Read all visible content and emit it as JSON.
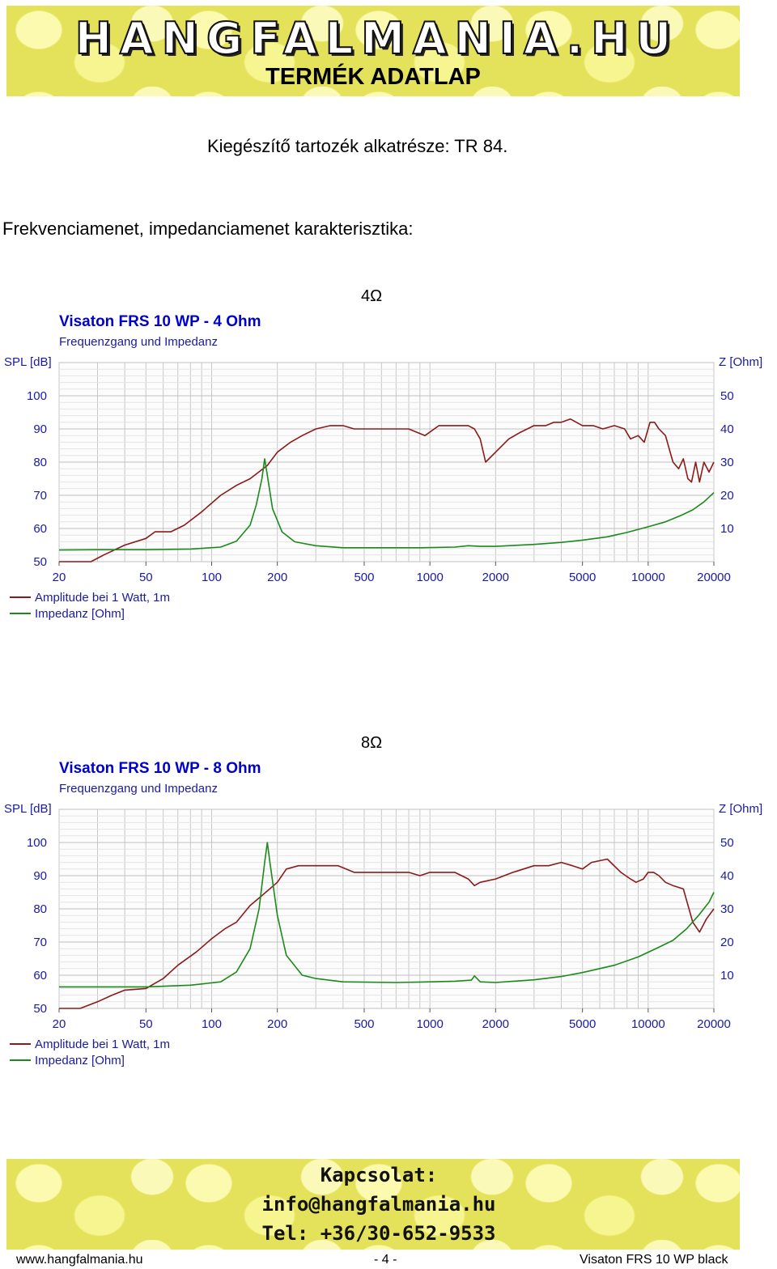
{
  "header": {
    "logo_text": "HANGFALMANIA.HU",
    "doc_type": "TERMÉK ADATLAP"
  },
  "accessory_line": "Kiegészítő tartozék alkatrésze: TR 84.",
  "section_heading": "Frekvenciamenet, impedanciamenet karakterisztika:",
  "colors": {
    "honeycomb": "#e4e25a",
    "spl_curve": "#8b1a1a",
    "impedance_curve": "#1a8a1a",
    "chart_title": "#0000cc"
  },
  "chart_data": [
    {
      "type": "line",
      "caption": "4Ω",
      "title": "Visaton FRS 10 WP - 4 Ohm",
      "subtitle": "Frequenzgang und Impedanz",
      "ylabel": "SPL [dB]",
      "y2label": "Z [Ohm]",
      "xscale": "log",
      "xlim": [
        20,
        20000
      ],
      "ylim": [
        50,
        110
      ],
      "y2lim": [
        0,
        60
      ],
      "x_ticks": [
        20,
        50,
        100,
        200,
        500,
        1000,
        2000,
        5000,
        10000,
        20000
      ],
      "y_ticks": [
        50,
        60,
        70,
        80,
        90,
        100
      ],
      "y2_ticks": [
        10,
        20,
        30,
        40,
        50
      ],
      "grid": true,
      "legend_position": "bottom-left",
      "series": [
        {
          "name": "Amplitude bei 1 Watt, 1m",
          "axis": "left",
          "color": "#8b1a1a",
          "points": [
            [
              20,
              50
            ],
            [
              28,
              50
            ],
            [
              32,
              52
            ],
            [
              40,
              55
            ],
            [
              50,
              57
            ],
            [
              55,
              59
            ],
            [
              65,
              59
            ],
            [
              75,
              61
            ],
            [
              90,
              65
            ],
            [
              110,
              70
            ],
            [
              130,
              73
            ],
            [
              150,
              75
            ],
            [
              180,
              79
            ],
            [
              200,
              83
            ],
            [
              230,
              86
            ],
            [
              260,
              88
            ],
            [
              300,
              90
            ],
            [
              350,
              91
            ],
            [
              400,
              91
            ],
            [
              450,
              90
            ],
            [
              500,
              90
            ],
            [
              600,
              90
            ],
            [
              700,
              90
            ],
            [
              800,
              90
            ],
            [
              950,
              88
            ],
            [
              1100,
              91
            ],
            [
              1300,
              91
            ],
            [
              1500,
              91
            ],
            [
              1600,
              90
            ],
            [
              1700,
              87
            ],
            [
              1800,
              80
            ],
            [
              2000,
              83
            ],
            [
              2300,
              87
            ],
            [
              2600,
              89
            ],
            [
              3000,
              91
            ],
            [
              3400,
              91
            ],
            [
              3700,
              92
            ],
            [
              4000,
              92
            ],
            [
              4400,
              93
            ],
            [
              5000,
              91
            ],
            [
              5600,
              91
            ],
            [
              6200,
              90
            ],
            [
              7000,
              91
            ],
            [
              7800,
              90
            ],
            [
              8300,
              87
            ],
            [
              9000,
              88
            ],
            [
              9600,
              86
            ],
            [
              10200,
              92
            ],
            [
              10700,
              92
            ],
            [
              11200,
              90
            ],
            [
              12000,
              88
            ],
            [
              13000,
              80
            ],
            [
              13800,
              78
            ],
            [
              14500,
              81
            ],
            [
              15200,
              75
            ],
            [
              15800,
              74
            ],
            [
              16500,
              80
            ],
            [
              17200,
              74
            ],
            [
              18000,
              80
            ],
            [
              19000,
              77
            ],
            [
              20000,
              80
            ]
          ]
        },
        {
          "name": "Impedanz [Ohm]",
          "axis": "right",
          "color": "#1a8a1a",
          "points": [
            [
              20,
              3.5
            ],
            [
              30,
              3.6
            ],
            [
              50,
              3.6
            ],
            [
              80,
              3.8
            ],
            [
              110,
              4.4
            ],
            [
              130,
              6.2
            ],
            [
              150,
              11
            ],
            [
              160,
              17
            ],
            [
              170,
              25
            ],
            [
              175,
              31
            ],
            [
              180,
              26
            ],
            [
              190,
              16
            ],
            [
              210,
              9
            ],
            [
              240,
              6
            ],
            [
              300,
              4.8
            ],
            [
              400,
              4.2
            ],
            [
              600,
              4.2
            ],
            [
              900,
              4.2
            ],
            [
              1300,
              4.4
            ],
            [
              1500,
              4.8
            ],
            [
              1700,
              4.6
            ],
            [
              2000,
              4.6
            ],
            [
              3000,
              5.2
            ],
            [
              4000,
              5.8
            ],
            [
              5000,
              6.5
            ],
            [
              6500,
              7.5
            ],
            [
              8000,
              8.8
            ],
            [
              10000,
              10.5
            ],
            [
              12000,
              12
            ],
            [
              14000,
              13.8
            ],
            [
              16000,
              15.6
            ],
            [
              18000,
              18
            ],
            [
              20000,
              20.8
            ]
          ]
        }
      ]
    },
    {
      "type": "line",
      "caption": "8Ω",
      "title": "Visaton FRS 10 WP - 8 Ohm",
      "subtitle": "Frequenzgang und Impedanz",
      "ylabel": "SPL [dB]",
      "y2label": "Z [Ohm]",
      "xscale": "log",
      "xlim": [
        20,
        20000
      ],
      "ylim": [
        50,
        110
      ],
      "y2lim": [
        0,
        60
      ],
      "x_ticks": [
        20,
        50,
        100,
        200,
        500,
        1000,
        2000,
        5000,
        10000,
        20000
      ],
      "y_ticks": [
        50,
        60,
        70,
        80,
        90,
        100
      ],
      "y2_ticks": [
        10,
        20,
        30,
        40,
        50
      ],
      "grid": true,
      "legend_position": "bottom-left",
      "series": [
        {
          "name": "Amplitude bei 1 Watt, 1m",
          "axis": "left",
          "color": "#8b1a1a",
          "points": [
            [
              20,
              50
            ],
            [
              25,
              50
            ],
            [
              30,
              52
            ],
            [
              35,
              54
            ],
            [
              40,
              55.5
            ],
            [
              50,
              56
            ],
            [
              60,
              59
            ],
            [
              70,
              63
            ],
            [
              85,
              67
            ],
            [
              100,
              71
            ],
            [
              115,
              74
            ],
            [
              130,
              76
            ],
            [
              150,
              81
            ],
            [
              170,
              84
            ],
            [
              200,
              88
            ],
            [
              220,
              92
            ],
            [
              250,
              93
            ],
            [
              300,
              93
            ],
            [
              380,
              93
            ],
            [
              450,
              91
            ],
            [
              600,
              91
            ],
            [
              800,
              91
            ],
            [
              900,
              90
            ],
            [
              1000,
              91
            ],
            [
              1100,
              91
            ],
            [
              1300,
              91
            ],
            [
              1500,
              89
            ],
            [
              1600,
              87
            ],
            [
              1700,
              88
            ],
            [
              2000,
              89
            ],
            [
              2400,
              91
            ],
            [
              3000,
              93
            ],
            [
              3500,
              93
            ],
            [
              4000,
              94
            ],
            [
              4500,
              93
            ],
            [
              5000,
              92
            ],
            [
              5500,
              94
            ],
            [
              6500,
              95
            ],
            [
              7500,
              91
            ],
            [
              8300,
              89
            ],
            [
              8800,
              88
            ],
            [
              9500,
              89
            ],
            [
              10000,
              91
            ],
            [
              10600,
              91
            ],
            [
              11200,
              90
            ],
            [
              12000,
              88
            ],
            [
              13000,
              87
            ],
            [
              14500,
              86
            ],
            [
              16000,
              76
            ],
            [
              17200,
              73
            ],
            [
              18500,
              77
            ],
            [
              20000,
              80
            ]
          ]
        },
        {
          "name": "Impedanz [Ohm]",
          "axis": "right",
          "color": "#1a8a1a",
          "points": [
            [
              20,
              6.5
            ],
            [
              50,
              6.5
            ],
            [
              80,
              7
            ],
            [
              110,
              8
            ],
            [
              130,
              11
            ],
            [
              150,
              18
            ],
            [
              165,
              30
            ],
            [
              175,
              44
            ],
            [
              180,
              50
            ],
            [
              185,
              44
            ],
            [
              200,
              28
            ],
            [
              220,
              16
            ],
            [
              260,
              10
            ],
            [
              300,
              9
            ],
            [
              400,
              8
            ],
            [
              700,
              7.8
            ],
            [
              1000,
              8
            ],
            [
              1300,
              8.2
            ],
            [
              1550,
              8.5
            ],
            [
              1600,
              9.8
            ],
            [
              1700,
              8
            ],
            [
              2000,
              7.8
            ],
            [
              3000,
              8.6
            ],
            [
              4000,
              9.6
            ],
            [
              5000,
              10.8
            ],
            [
              7000,
              13
            ],
            [
              9000,
              15.5
            ],
            [
              11000,
              18.2
            ],
            [
              13000,
              20.5
            ],
            [
              15000,
              24
            ],
            [
              17000,
              28
            ],
            [
              19000,
              32
            ],
            [
              20000,
              35
            ]
          ]
        }
      ]
    }
  ],
  "contact": {
    "title": "Kapcsolat:",
    "email": "info@hangfalmania.hu",
    "phone": "Tel: +36/30-652-9533"
  },
  "footer": {
    "url": "www.hangfalmania.hu",
    "page": "- 4 -",
    "product": "Visaton FRS 10 WP black"
  }
}
